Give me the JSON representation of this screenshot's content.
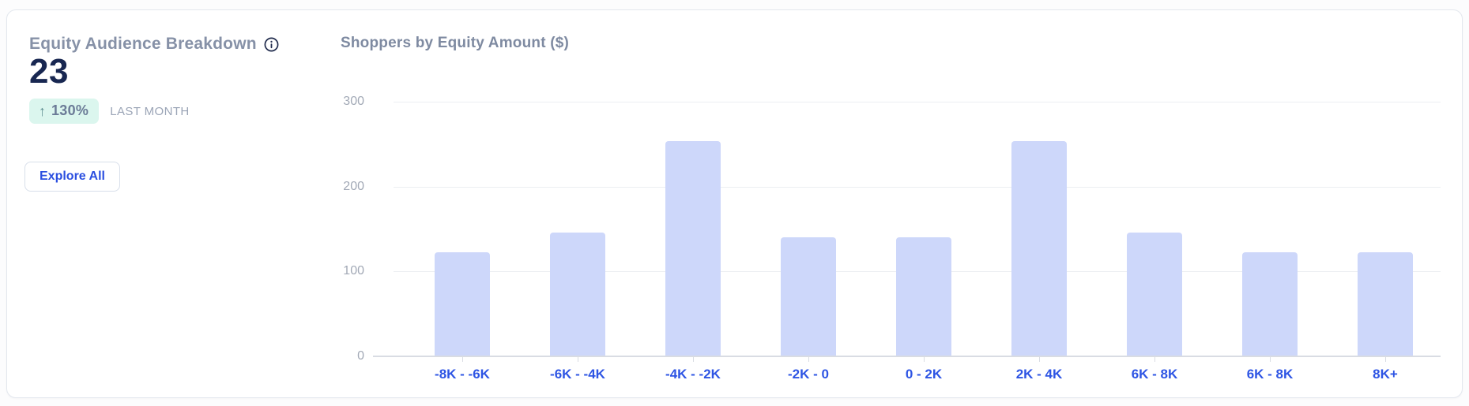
{
  "card": {
    "summary": {
      "title": "Equity Audience Breakdown",
      "value": "23",
      "delta": {
        "arrow": "↑",
        "percent": "130%",
        "period_label": "LAST MONTH"
      },
      "explore_button_label": "Explore All"
    },
    "chart_header": {
      "title": "Shoppers by Equity Amount ($)"
    }
  },
  "icons": {
    "info": "info-icon"
  },
  "colors": {
    "accent_blue": "#2b4fe0",
    "x_label_blue": "#2e55e4",
    "bar_fill": "#cdd7fa",
    "badge_bg": "#dbf6ee",
    "kpi_navy": "#182751",
    "title_gray": "#8691a7"
  },
  "chart_data": {
    "type": "bar",
    "title": "Shoppers by Equity Amount ($)",
    "categories": [
      "-8K - -6K",
      "-6K - -4K",
      "-4K - -2K",
      "-2K - 0",
      "0 - 2K",
      "2K - 4K",
      "6K - 8K",
      "6K - 8K",
      "8K+"
    ],
    "values": [
      122,
      145,
      253,
      139,
      139,
      253,
      145,
      122,
      122
    ],
    "xlabel": "",
    "ylabel": "",
    "ylim": [
      0,
      300
    ],
    "y_ticks": [
      0,
      100,
      200,
      300
    ],
    "grid": true,
    "legend": "none"
  }
}
